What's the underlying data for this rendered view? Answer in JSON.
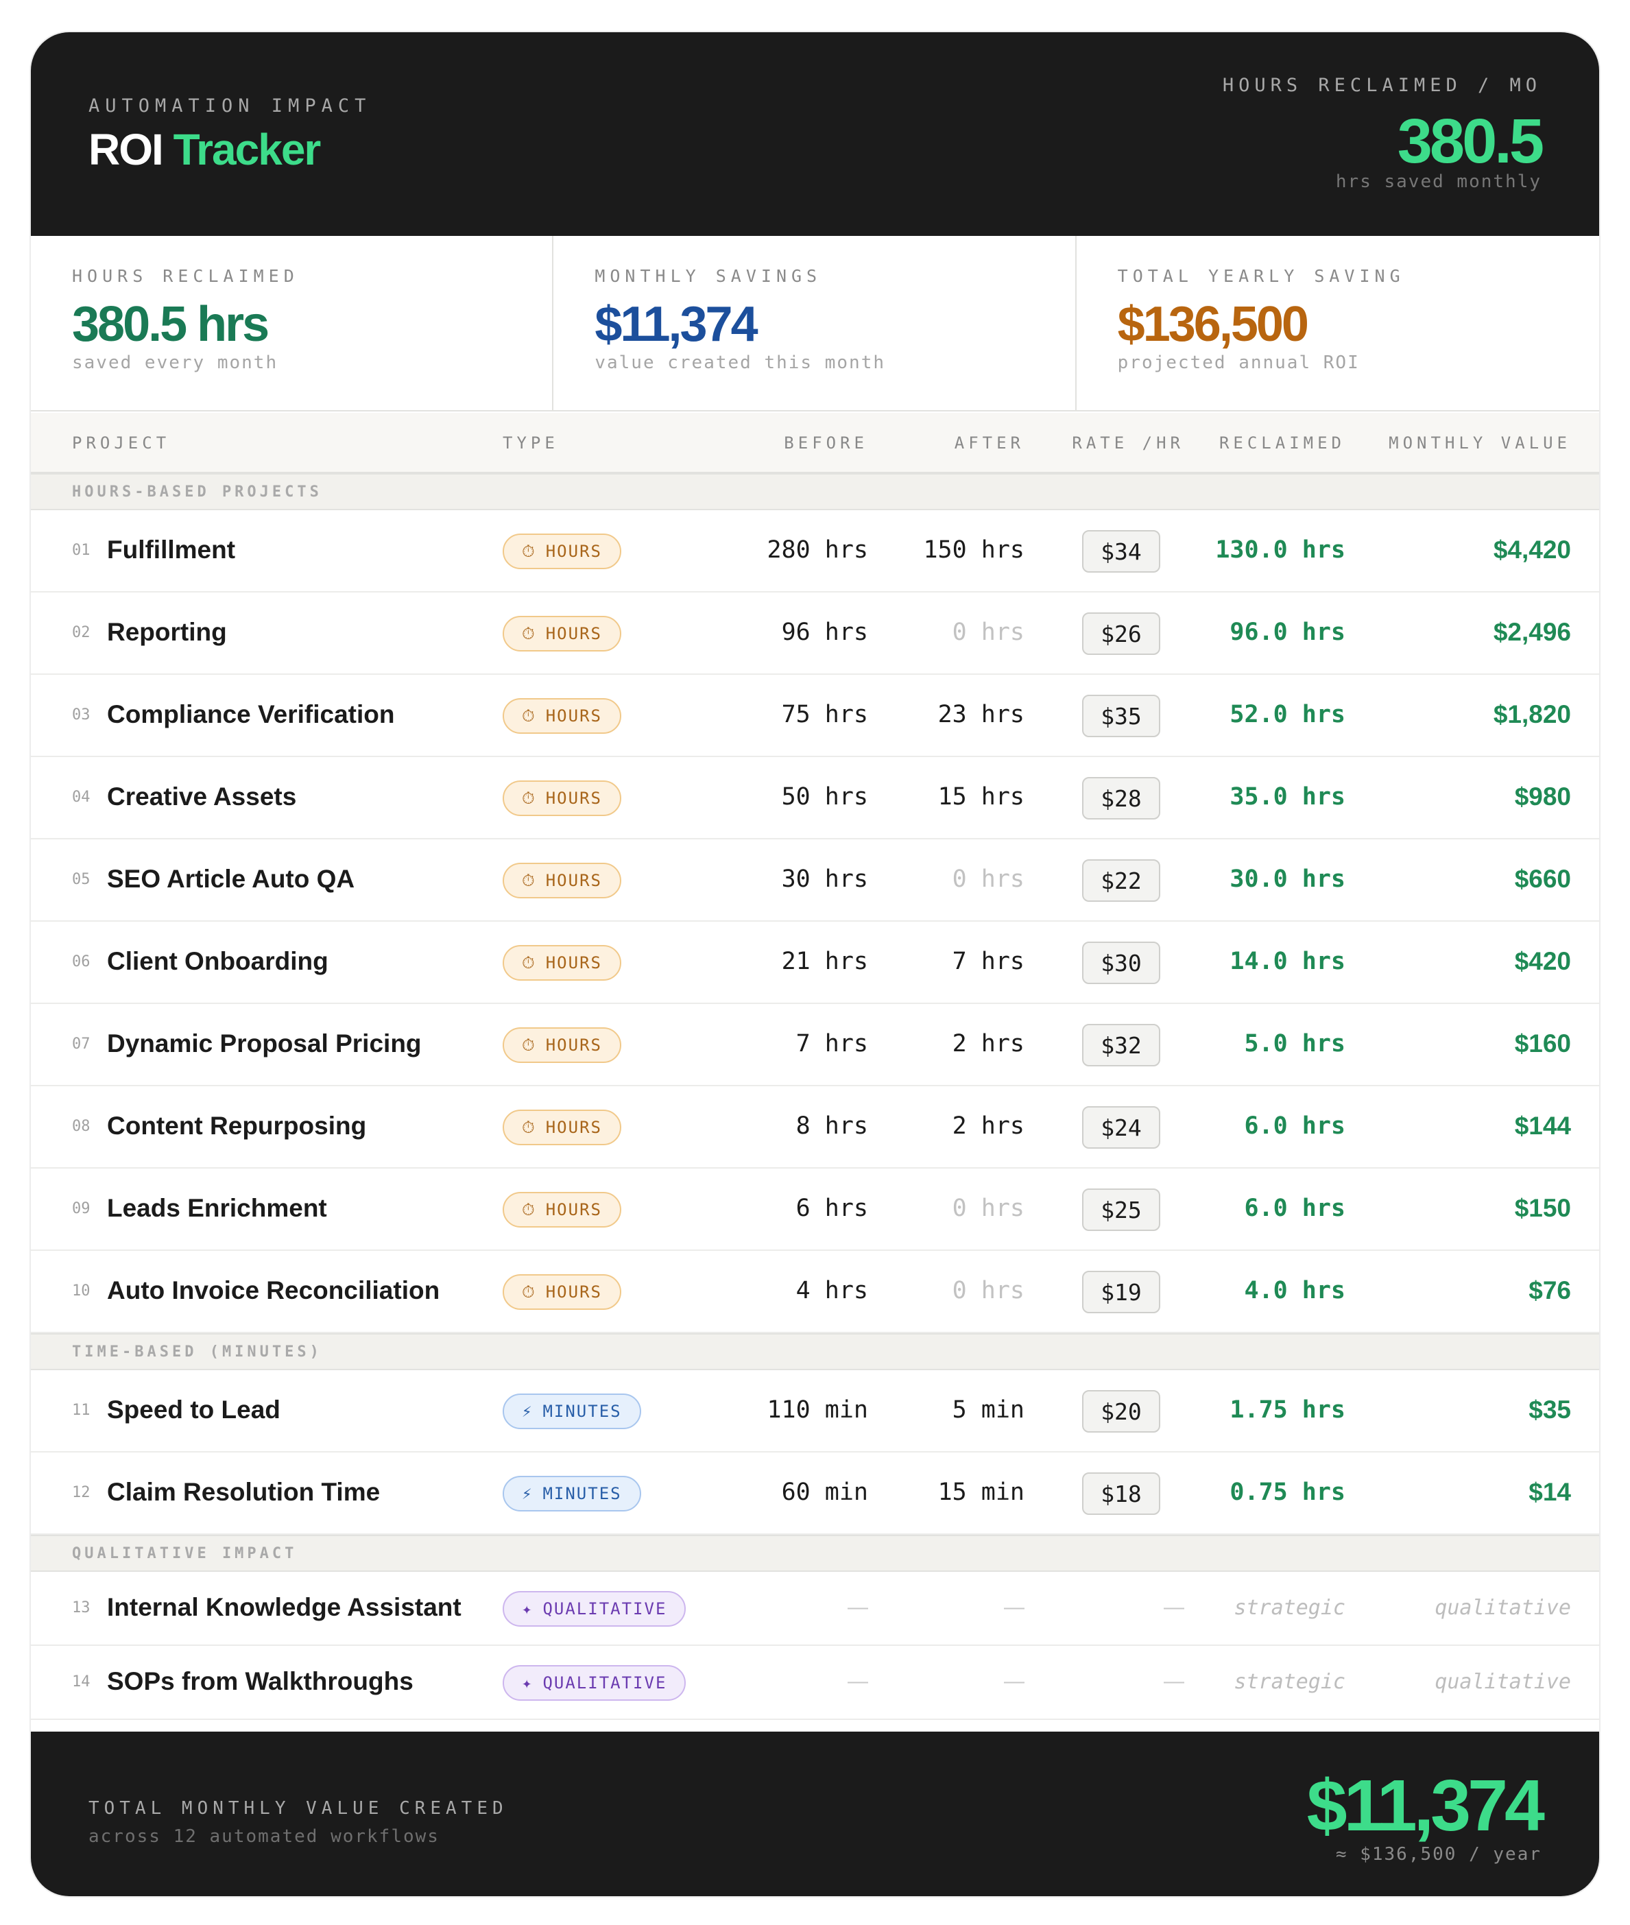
{
  "header": {
    "eyebrow": "AUTOMATION IMPACT",
    "title_main": "ROI",
    "title_accent": "Tracker",
    "metric_label": "HOURS RECLAIMED / MO",
    "metric_value": "380.5",
    "metric_sub": "hrs saved monthly"
  },
  "stats": [
    {
      "label": "HOURS RECLAIMED",
      "value": "380.5 hrs",
      "sub": "saved every month",
      "color": "#1a7a55"
    },
    {
      "label": "MONTHLY SAVINGS",
      "value": "$11,374",
      "sub": "value created this month",
      "color": "#1c4f9c"
    },
    {
      "label": "TOTAL YEARLY SAVING",
      "value": "$136,500",
      "sub": "projected annual ROI",
      "color": "#b8650f"
    }
  ],
  "columns": {
    "project": "PROJECT",
    "type": "TYPE",
    "before": "BEFORE",
    "after": "AFTER",
    "rate": "RATE /HR",
    "reclaimed": "RECLAIMED",
    "monthly_value": "MONTHLY VALUE"
  },
  "sections": {
    "hours": "HOURS-BASED PROJECTS",
    "minutes": "TIME-BASED (MINUTES)",
    "qualitative": "QUALITATIVE IMPACT"
  },
  "badges": {
    "hours": {
      "icon": "clock-icon",
      "glyph": "⏱",
      "label": "HOURS"
    },
    "minutes": {
      "icon": "bolt-icon",
      "glyph": "⚡",
      "label": "MINUTES"
    },
    "qualitative": {
      "icon": "sparkle-icon",
      "glyph": "✦",
      "label": "QUALITATIVE"
    }
  },
  "hours_rows": [
    {
      "num": "01",
      "name": "Fulfillment",
      "before": "280 hrs",
      "after": "150 hrs",
      "after_zero": false,
      "rate": "$34",
      "reclaimed": "130.0 hrs",
      "value": "$4,420"
    },
    {
      "num": "02",
      "name": "Reporting",
      "before": "96 hrs",
      "after": "0 hrs",
      "after_zero": true,
      "rate": "$26",
      "reclaimed": "96.0 hrs",
      "value": "$2,496"
    },
    {
      "num": "03",
      "name": "Compliance Verification",
      "before": "75 hrs",
      "after": "23 hrs",
      "after_zero": false,
      "rate": "$35",
      "reclaimed": "52.0 hrs",
      "value": "$1,820"
    },
    {
      "num": "04",
      "name": "Creative Assets",
      "before": "50 hrs",
      "after": "15 hrs",
      "after_zero": false,
      "rate": "$28",
      "reclaimed": "35.0 hrs",
      "value": "$980"
    },
    {
      "num": "05",
      "name": "SEO Article Auto QA",
      "before": "30 hrs",
      "after": "0 hrs",
      "after_zero": true,
      "rate": "$22",
      "reclaimed": "30.0 hrs",
      "value": "$660"
    },
    {
      "num": "06",
      "name": "Client Onboarding",
      "before": "21 hrs",
      "after": "7 hrs",
      "after_zero": false,
      "rate": "$30",
      "reclaimed": "14.0 hrs",
      "value": "$420"
    },
    {
      "num": "07",
      "name": "Dynamic Proposal Pricing",
      "before": "7 hrs",
      "after": "2 hrs",
      "after_zero": false,
      "rate": "$32",
      "reclaimed": "5.0 hrs",
      "value": "$160"
    },
    {
      "num": "08",
      "name": "Content Repurposing",
      "before": "8 hrs",
      "after": "2 hrs",
      "after_zero": false,
      "rate": "$24",
      "reclaimed": "6.0 hrs",
      "value": "$144"
    },
    {
      "num": "09",
      "name": "Leads Enrichment",
      "before": "6 hrs",
      "after": "0 hrs",
      "after_zero": true,
      "rate": "$25",
      "reclaimed": "6.0 hrs",
      "value": "$150"
    },
    {
      "num": "10",
      "name": "Auto Invoice Reconciliation",
      "before": "4 hrs",
      "after": "0 hrs",
      "after_zero": true,
      "rate": "$19",
      "reclaimed": "4.0 hrs",
      "value": "$76"
    }
  ],
  "minute_rows": [
    {
      "num": "11",
      "name": "Speed to Lead",
      "before": "110 min",
      "after": "5 min",
      "rate": "$20",
      "reclaimed": "1.75 hrs",
      "value": "$35"
    },
    {
      "num": "12",
      "name": "Claim Resolution Time",
      "before": "60 min",
      "after": "15 min",
      "rate": "$18",
      "reclaimed": "0.75 hrs",
      "value": "$14"
    }
  ],
  "qual_rows": [
    {
      "num": "13",
      "name": "Internal Knowledge Assistant",
      "before": "—",
      "after": "—",
      "rate": "—",
      "reclaimed": "strategic",
      "value": "qualitative"
    },
    {
      "num": "14",
      "name": "SOPs from Walkthroughs",
      "before": "—",
      "after": "—",
      "rate": "—",
      "reclaimed": "strategic",
      "value": "qualitative"
    }
  ],
  "footer": {
    "label": "TOTAL MONTHLY VALUE CREATED",
    "sub": "across 12 automated workflows",
    "value": "$11,374",
    "yearly": "≈ $136,500 / year"
  }
}
